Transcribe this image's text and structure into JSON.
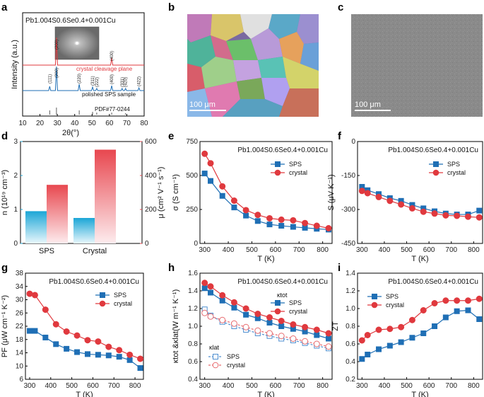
{
  "panels": {
    "a": "a",
    "b": "b",
    "c": "c",
    "d": "d",
    "e": "e",
    "f": "f",
    "g": "g",
    "h": "h",
    "i": "i"
  },
  "composition": "Pb1.004S0.6Se0.4+0.001Cu",
  "colors": {
    "sps": "#1f6fb5",
    "crystal": "#e0393e",
    "cyan": "#1ba6d6",
    "pink": "#e8474f"
  },
  "scale_bar": "100 μm",
  "xrd": {
    "ylabel": "Intensity (a.u.)",
    "xlabel": "2θ(°)",
    "xticks": [
      "10",
      "20",
      "30",
      "40",
      "50",
      "60",
      "70",
      "80"
    ],
    "crystal_label": "crystal cleavage plane",
    "sps_label": "polished SPS sample",
    "pdf_label": "PDF#77-0244",
    "crystal_peaks": [
      {
        "hkl": "(200)",
        "two_theta": 29.5
      },
      {
        "hkl": "(400)",
        "two_theta": 61.3
      }
    ],
    "sps_peaks": [
      {
        "hkl": "(111)",
        "two_theta": 25.6
      },
      {
        "hkl": "(200)",
        "two_theta": 29.5
      },
      {
        "hkl": "(220)",
        "two_theta": 42.6
      },
      {
        "hkl": "(311)",
        "two_theta": 50.3
      },
      {
        "hkl": "(222)",
        "two_theta": 52.7
      },
      {
        "hkl": "(400)",
        "two_theta": 61.3
      },
      {
        "hkl": "(331)",
        "two_theta": 67.3
      },
      {
        "hkl": "(420)",
        "two_theta": 69.3
      },
      {
        "hkl": "(422)",
        "two_theta": 77.0
      }
    ]
  },
  "chart_data": [
    {
      "id": "d",
      "type": "bar",
      "categories": [
        "SPS",
        "Crystal"
      ],
      "series": [
        {
          "name": "n (10^19 cm^-3)",
          "axis": "left",
          "values": [
            0.95,
            0.75
          ]
        },
        {
          "name": "μ (cm^2 V^-1 s^-1)",
          "axis": "right",
          "values": [
            345,
            552
          ]
        }
      ],
      "ylabel_left": "n (10¹⁹ cm⁻³)",
      "ylabel_right": "μ (cm² V⁻¹ s⁻¹)",
      "ylim_left": [
        0,
        3
      ],
      "ylim_right": [
        0,
        600
      ],
      "yticks_left": [
        "0",
        "1",
        "2",
        "3"
      ],
      "yticks_right": [
        "0",
        "200",
        "400",
        "600"
      ]
    },
    {
      "id": "e",
      "type": "line",
      "xlabel": "T (K)",
      "ylabel": "σ (S cm⁻¹)",
      "xlim": [
        280,
        840
      ],
      "ylim": [
        0,
        750
      ],
      "xticks": [
        "300",
        "400",
        "500",
        "600",
        "700",
        "800"
      ],
      "yticks": [
        "0",
        "250",
        "500",
        "750"
      ],
      "legend": [
        "SPS",
        "crystal"
      ],
      "series": [
        {
          "name": "SPS",
          "x": [
            300,
            325,
            375,
            425,
            475,
            525,
            575,
            625,
            675,
            725,
            775,
            825
          ],
          "y": [
            515,
            460,
            350,
            265,
            205,
            165,
            140,
            130,
            122,
            115,
            108,
            102
          ]
        },
        {
          "name": "crystal",
          "x": [
            300,
            325,
            375,
            425,
            475,
            525,
            575,
            625,
            675,
            725,
            775,
            825
          ],
          "y": [
            660,
            590,
            420,
            315,
            245,
            210,
            185,
            175,
            170,
            150,
            130,
            112
          ]
        }
      ]
    },
    {
      "id": "f",
      "type": "line",
      "xlabel": "T (K)",
      "ylabel": "S (μV K⁻¹)",
      "xlim": [
        280,
        840
      ],
      "ylim": [
        -450,
        0
      ],
      "xticks": [
        "300",
        "400",
        "500",
        "600",
        "700",
        "800"
      ],
      "yticks": [
        "-450",
        "-300",
        "-150",
        "0"
      ],
      "legend": [
        "SPS",
        "crystal"
      ],
      "series": [
        {
          "name": "SPS",
          "x": [
            300,
            325,
            375,
            425,
            475,
            525,
            575,
            625,
            675,
            725,
            775,
            825
          ],
          "y": [
            -200,
            -215,
            -232,
            -250,
            -262,
            -280,
            -295,
            -308,
            -318,
            -322,
            -322,
            -305
          ]
        },
        {
          "name": "crystal",
          "x": [
            300,
            325,
            375,
            425,
            475,
            525,
            575,
            625,
            675,
            725,
            775,
            825
          ],
          "y": [
            -218,
            -228,
            -245,
            -262,
            -278,
            -295,
            -310,
            -318,
            -326,
            -328,
            -332,
            -335
          ]
        }
      ]
    },
    {
      "id": "g",
      "type": "line",
      "xlabel": "T (K)",
      "ylabel": "PF (μW cm⁻¹ K⁻²)",
      "xlim": [
        280,
        840
      ],
      "ylim": [
        6,
        38
      ],
      "xticks": [
        "300",
        "400",
        "500",
        "600",
        "700",
        "800"
      ],
      "yticks": [
        "6",
        "10",
        "14",
        "18",
        "22",
        "26",
        "30",
        "34",
        "38"
      ],
      "legend": [
        "SPS",
        "crystal"
      ],
      "series": [
        {
          "name": "SPS",
          "x": [
            300,
            325,
            375,
            425,
            475,
            525,
            575,
            625,
            675,
            725,
            775,
            825
          ],
          "y": [
            20.6,
            20.6,
            18.6,
            16.6,
            15.2,
            14.2,
            13.6,
            13.4,
            13.2,
            12.8,
            11.8,
            9.4
          ]
        },
        {
          "name": "crystal",
          "x": [
            300,
            325,
            375,
            425,
            475,
            525,
            575,
            625,
            675,
            725,
            775,
            825
          ],
          "y": [
            31.8,
            31.4,
            27.0,
            22.6,
            20.4,
            19.2,
            17.8,
            17.4,
            15.8,
            14.8,
            13.4,
            12.2
          ]
        }
      ]
    },
    {
      "id": "h",
      "type": "line",
      "xlabel": "T (K)",
      "ylabel": "κtot &κlat(W m⁻¹ K⁻¹)",
      "xlim": [
        280,
        840
      ],
      "ylim": [
        0.4,
        1.6
      ],
      "xticks": [
        "300",
        "400",
        "500",
        "600",
        "700",
        "800"
      ],
      "yticks": [
        "0.4",
        "0.6",
        "0.8",
        "1.0",
        "1.2",
        "1.4",
        "1.6"
      ],
      "legend_tot_title": "κtot",
      "legend_lat_title": "κlat",
      "legend": [
        "SPS",
        "crystal"
      ],
      "series": [
        {
          "name": "SPS tot",
          "x": [
            300,
            325,
            375,
            425,
            475,
            525,
            575,
            625,
            675,
            725,
            775,
            825
          ],
          "y": [
            1.43,
            1.38,
            1.29,
            1.21,
            1.13,
            1.09,
            1.04,
            1.0,
            0.97,
            0.94,
            0.9,
            0.86
          ]
        },
        {
          "name": "crystal tot",
          "x": [
            300,
            325,
            375,
            425,
            475,
            525,
            575,
            625,
            675,
            725,
            775,
            825
          ],
          "y": [
            1.49,
            1.45,
            1.35,
            1.27,
            1.2,
            1.14,
            1.1,
            1.06,
            1.02,
            0.99,
            0.96,
            0.92
          ]
        },
        {
          "name": "SPS lat",
          "x": [
            300,
            325,
            375,
            425,
            475,
            525,
            575,
            625,
            675,
            725,
            775,
            825
          ],
          "y": [
            1.19,
            1.12,
            1.05,
            1.0,
            0.96,
            0.92,
            0.89,
            0.86,
            0.84,
            0.81,
            0.78,
            0.75
          ]
        },
        {
          "name": "crystal lat",
          "x": [
            300,
            325,
            375,
            425,
            475,
            525,
            575,
            625,
            675,
            725,
            775,
            825
          ],
          "y": [
            1.15,
            1.11,
            1.07,
            1.03,
            0.99,
            0.95,
            0.92,
            0.89,
            0.86,
            0.83,
            0.8,
            0.77
          ]
        }
      ]
    },
    {
      "id": "i",
      "type": "line",
      "xlabel": "T (K)",
      "ylabel": "ZT",
      "xlim": [
        280,
        840
      ],
      "ylim": [
        0.2,
        1.4
      ],
      "xticks": [
        "300",
        "400",
        "500",
        "600",
        "700",
        "800"
      ],
      "yticks": [
        "0.2",
        "0.4",
        "0.6",
        "0.8",
        "1.0",
        "1.2",
        "1.4"
      ],
      "legend": [
        "SPS",
        "crystal"
      ],
      "series": [
        {
          "name": "SPS",
          "x": [
            300,
            325,
            375,
            425,
            475,
            525,
            575,
            625,
            675,
            725,
            775,
            825
          ],
          "y": [
            0.43,
            0.48,
            0.54,
            0.58,
            0.62,
            0.67,
            0.72,
            0.8,
            0.9,
            0.97,
            0.98,
            0.88
          ]
        },
        {
          "name": "crystal",
          "x": [
            300,
            325,
            375,
            425,
            475,
            525,
            575,
            625,
            675,
            725,
            775,
            825
          ],
          "y": [
            0.64,
            0.7,
            0.76,
            0.77,
            0.79,
            0.87,
            0.98,
            1.06,
            1.09,
            1.09,
            1.09,
            1.11
          ]
        }
      ]
    }
  ]
}
